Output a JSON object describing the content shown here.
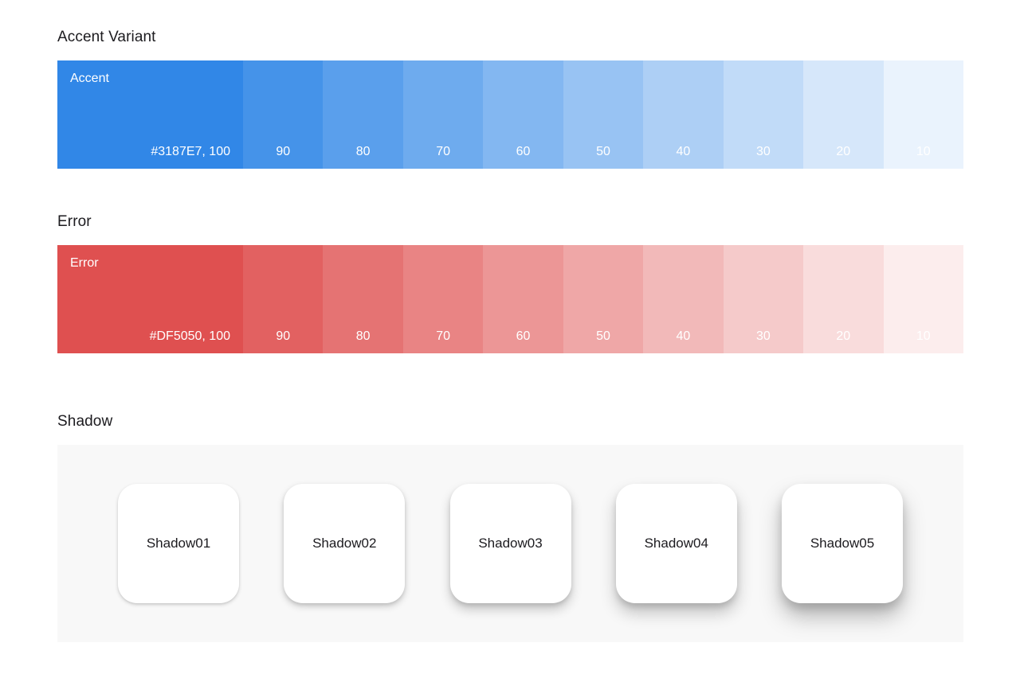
{
  "palettes": [
    {
      "id": "accent",
      "heading": "Accent Variant",
      "swatch_label": "Accent",
      "hex": "#3187E7",
      "primary_value_label": "#3187E7, 100",
      "steps": [
        100,
        90,
        80,
        70,
        60,
        50,
        40,
        30,
        20,
        10
      ]
    },
    {
      "id": "error",
      "heading": "Error",
      "swatch_label": "Error",
      "hex": "#DF5050",
      "primary_value_label": "#DF5050, 100",
      "steps": [
        100,
        90,
        80,
        70,
        60,
        50,
        40,
        30,
        20,
        10
      ]
    }
  ],
  "shadow": {
    "heading": "Shadow",
    "cards": [
      {
        "label": "Shadow01"
      },
      {
        "label": "Shadow02"
      },
      {
        "label": "Shadow03"
      },
      {
        "label": "Shadow04"
      },
      {
        "label": "Shadow05"
      }
    ]
  },
  "colors": {
    "accent": "#3187E7",
    "error": "#DF5050",
    "panel_bg": "#F8F8F8",
    "card_bg": "#FFFFFF",
    "heading_text": "#1C1B1F",
    "swatch_text": "#FFFFFF"
  }
}
